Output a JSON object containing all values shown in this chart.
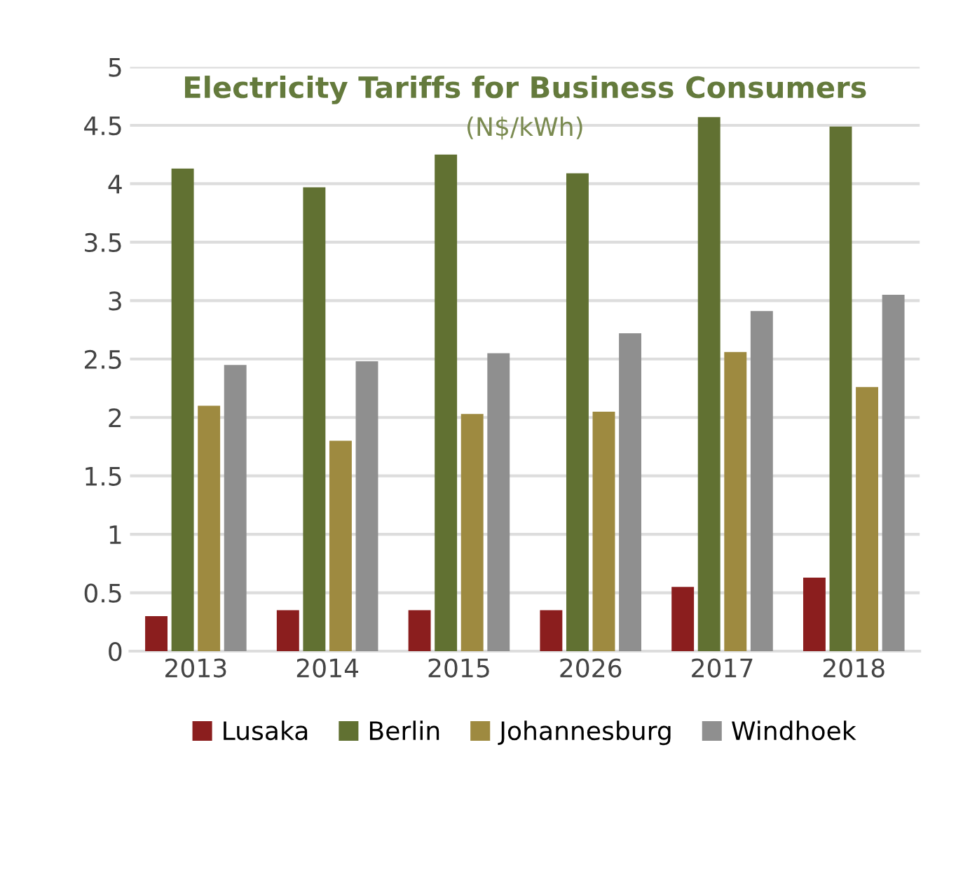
{
  "chart_data": {
    "type": "bar",
    "title": "Electricity Tariffs for Business Consumers",
    "subtitle": "(N$/kWh)",
    "categories": [
      "2013",
      "2014",
      "2015",
      "2026",
      "2017",
      "2018"
    ],
    "series": [
      {
        "name": "Lusaka",
        "color": "#8b1e1e",
        "values": [
          0.3,
          0.35,
          0.35,
          0.35,
          0.55,
          0.63
        ]
      },
      {
        "name": "Berlin",
        "color": "#617132",
        "values": [
          4.13,
          3.97,
          4.25,
          4.09,
          4.57,
          4.49
        ]
      },
      {
        "name": "Johannesburg",
        "color": "#9e8a40",
        "values": [
          2.1,
          1.8,
          2.03,
          2.05,
          2.56,
          2.26
        ]
      },
      {
        "name": "Windhoek",
        "color": "#8f8f8f",
        "values": [
          2.45,
          2.48,
          2.55,
          2.72,
          2.91,
          3.05
        ]
      }
    ],
    "ylim": [
      0,
      5
    ],
    "yticks": [
      0,
      0.5,
      1,
      1.5,
      2,
      2.5,
      3,
      3.5,
      4,
      4.5,
      5
    ],
    "grid": "y",
    "legend": "bottom"
  }
}
